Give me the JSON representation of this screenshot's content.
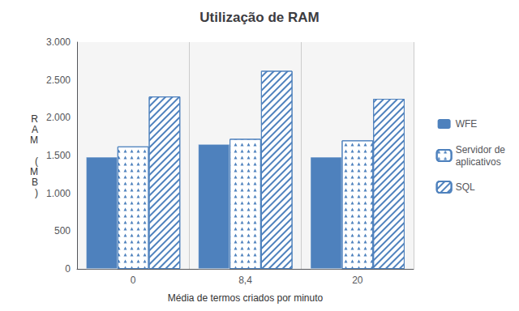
{
  "chart_data": {
    "type": "bar",
    "title": "Utilização de RAM",
    "xlabel": "Média de termos criados por minuto",
    "ylabel": "R\nA\nM\n\n(\nM\nB\n)",
    "categories": [
      "0",
      "8,4",
      "20"
    ],
    "series": [
      {
        "name": "WFE",
        "color": "#4E81BD",
        "values": [
          1480,
          1650,
          1480
        ]
      },
      {
        "name": "Servidor de\naplicativos",
        "color": "#4E81BD",
        "values": [
          1620,
          1720,
          1700
        ]
      },
      {
        "name": "SQL",
        "color": "#4E81BD",
        "values": [
          2280,
          2620,
          2250
        ]
      }
    ],
    "ylim": [
      0,
      3000
    ],
    "yticks": [
      0,
      500,
      {
        "value": 1000,
        "label": "1.000"
      },
      {
        "value": 1500,
        "label": "1.500"
      },
      {
        "value": 2000,
        "label": "2.000"
      },
      {
        "value": 2500,
        "label": "2.500"
      },
      {
        "value": 3000,
        "label": "3.000"
      }
    ],
    "grid": false,
    "legend": "right"
  }
}
